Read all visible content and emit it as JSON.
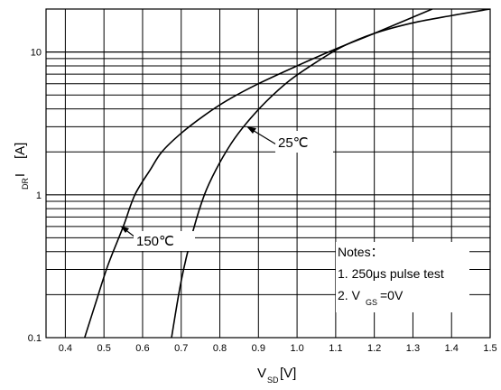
{
  "chart_data": {
    "type": "line",
    "x_axis": {
      "label": "V",
      "label_sub": "SD",
      "label_unit": "[V]",
      "range": [
        0.35,
        1.5
      ],
      "ticks": [
        0.4,
        0.5,
        0.6,
        0.7,
        0.8,
        0.9,
        1.0,
        1.1,
        1.2,
        1.3,
        1.4,
        1.5
      ],
      "tick_labels": [
        "0.4",
        "0.5",
        "0.6",
        "0.7",
        "0.8",
        "0.9",
        "1.0",
        "1.1",
        "1.2",
        "1.3",
        "1.4",
        "1.5"
      ]
    },
    "y_axis": {
      "label": "I",
      "label_sub": "DR",
      "label_unit": "[A]",
      "scale": "log",
      "range": [
        0.1,
        20
      ],
      "tick_labels": [
        {
          "value": 0.1,
          "text": "0.1"
        },
        {
          "value": 1,
          "text": "1"
        },
        {
          "value": 10,
          "text": "10"
        }
      ]
    },
    "grid": true,
    "series": [
      {
        "name": "150℃",
        "x": [
          0.45,
          0.48,
          0.51,
          0.55,
          0.58,
          0.62,
          0.65,
          0.7,
          0.76,
          0.82,
          0.9,
          1.0,
          1.1,
          1.2,
          1.35
        ],
        "y": [
          0.1,
          0.18,
          0.32,
          0.6,
          1.0,
          1.5,
          2.0,
          2.7,
          3.6,
          4.6,
          6.0,
          8.0,
          10.5,
          13.5,
          20
        ]
      },
      {
        "name": "25℃",
        "x": [
          0.675,
          0.7,
          0.73,
          0.76,
          0.79,
          0.83,
          0.87,
          0.92,
          0.98,
          1.05,
          1.12,
          1.2,
          1.3,
          1.4,
          1.5
        ],
        "y": [
          0.1,
          0.25,
          0.55,
          1.0,
          1.5,
          2.3,
          3.2,
          4.5,
          6.3,
          8.5,
          11.0,
          13.5,
          16.0,
          18.0,
          20
        ]
      }
    ],
    "annotations": [
      {
        "text": "25℃",
        "series": "25℃"
      },
      {
        "text": "150℃",
        "series": "150℃"
      }
    ],
    "notes": {
      "title": "Notes：",
      "line1": "1. 250μs pulse test",
      "line2_prefix": "2. V",
      "line2_sub": "GS",
      "line2_suffix": "=0V"
    }
  }
}
